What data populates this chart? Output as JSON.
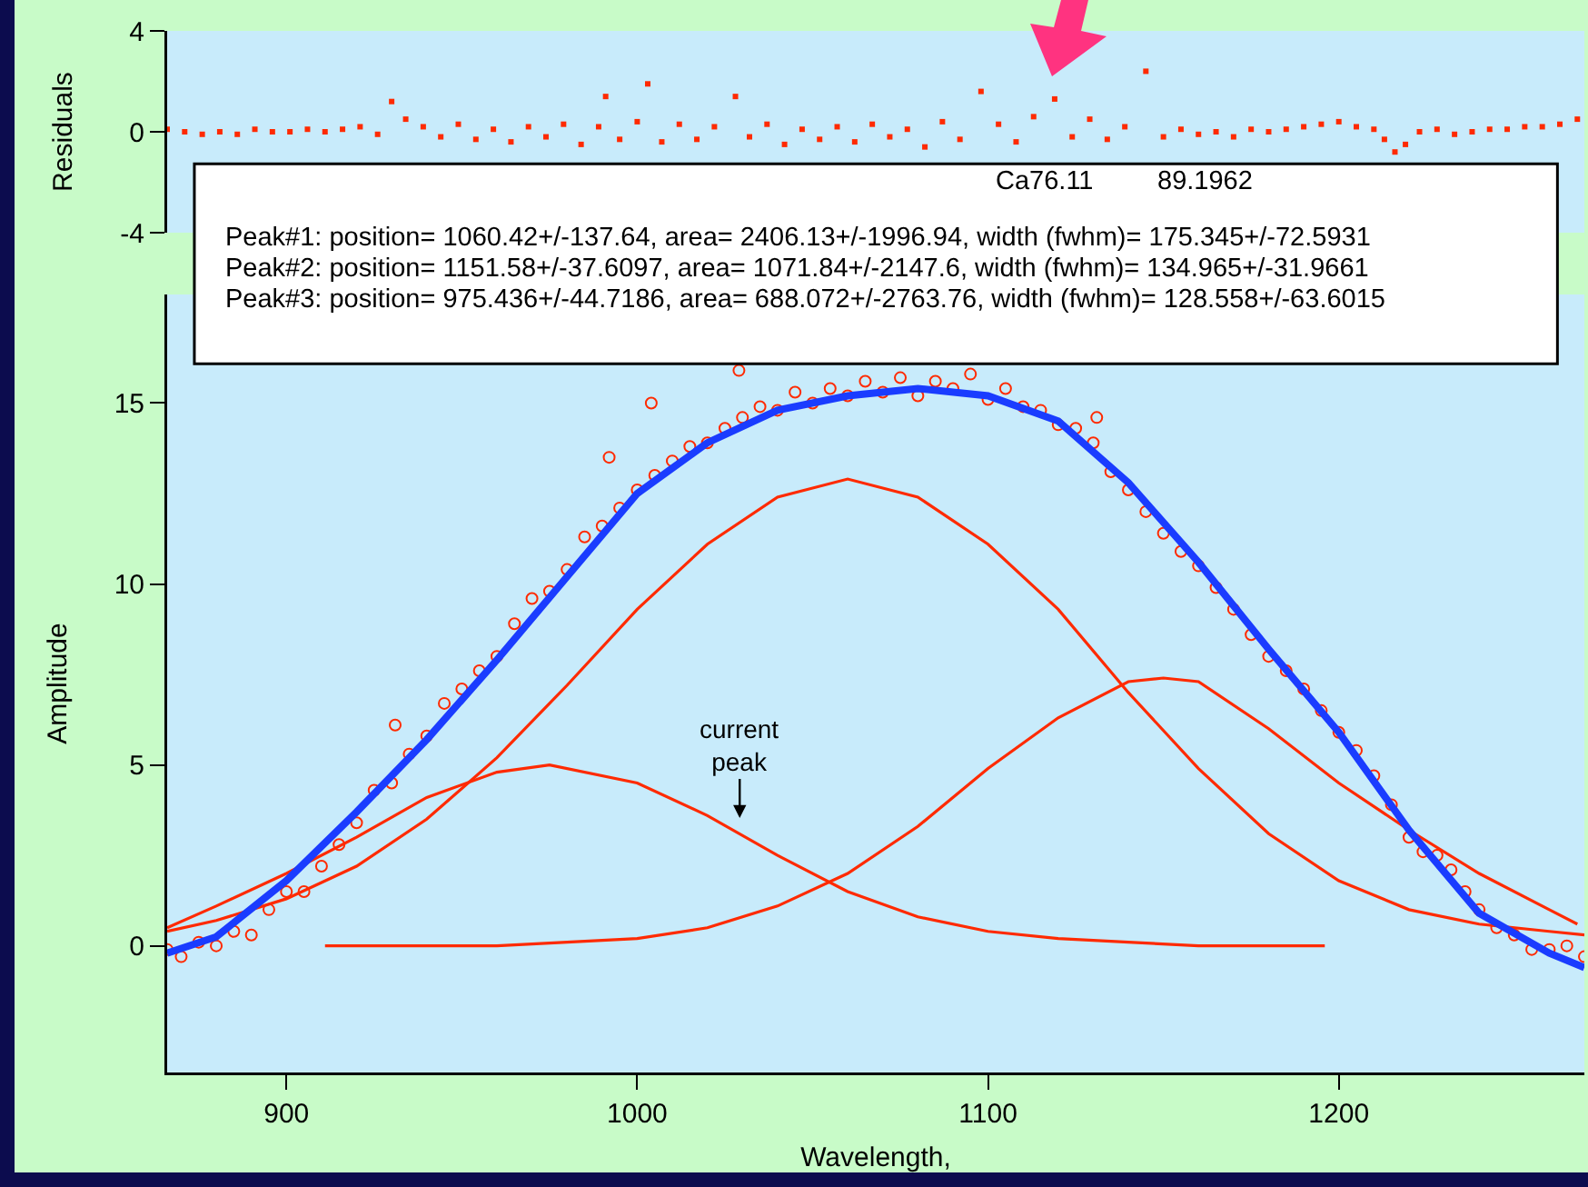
{
  "chart_data": [
    {
      "type": "scatter",
      "ylabel": "Residuals",
      "xlim": [
        866,
        1270
      ],
      "ylim": [
        -4,
        4
      ],
      "yticks": [
        -4,
        0,
        4
      ],
      "tick_labels": "y",
      "series": [
        {
          "color": "#ff2a00",
          "marker": "square",
          "x": [
            866,
            871,
            876,
            881,
            886,
            891,
            896,
            901,
            906,
            911,
            916,
            921,
            926,
            930,
            934,
            939,
            944,
            949,
            954,
            959,
            964,
            969,
            974,
            979,
            984,
            989,
            991,
            995,
            1000,
            1003,
            1007,
            1012,
            1017,
            1022,
            1028,
            1032,
            1037,
            1042,
            1047,
            1052,
            1057,
            1062,
            1067,
            1072,
            1077,
            1082,
            1087,
            1092,
            1098,
            1103,
            1108,
            1113,
            1119,
            1124,
            1129,
            1134,
            1139,
            1145,
            1150,
            1155,
            1160,
            1165,
            1170,
            1175,
            1180,
            1185,
            1190,
            1195,
            1200,
            1205,
            1210,
            1213,
            1216,
            1219,
            1223,
            1228,
            1233,
            1238,
            1243,
            1248,
            1253,
            1258,
            1263,
            1268
          ],
          "values": [
            0.1,
            0.0,
            -0.1,
            0.0,
            -0.1,
            0.1,
            0.0,
            0.0,
            0.1,
            0.0,
            0.1,
            0.2,
            -0.1,
            1.2,
            0.5,
            0.2,
            -0.2,
            0.3,
            -0.3,
            0.1,
            -0.4,
            0.2,
            -0.2,
            0.3,
            -0.5,
            0.2,
            1.4,
            -0.3,
            0.4,
            1.9,
            -0.4,
            0.3,
            -0.3,
            0.2,
            1.4,
            -0.2,
            0.3,
            -0.5,
            0.1,
            -0.3,
            0.2,
            -0.4,
            0.3,
            -0.2,
            0.1,
            -0.6,
            0.4,
            -0.3,
            1.6,
            0.3,
            -0.4,
            0.6,
            1.3,
            -0.2,
            0.5,
            -0.3,
            0.2,
            2.4,
            -0.2,
            0.1,
            -0.1,
            0.0,
            -0.2,
            0.1,
            0.0,
            0.1,
            0.2,
            0.3,
            0.4,
            0.2,
            0.1,
            -0.3,
            -0.8,
            -0.5,
            0.0,
            0.1,
            -0.1,
            0.0,
            0.1,
            0.1,
            0.2,
            0.2,
            0.3,
            0.5
          ]
        }
      ]
    },
    {
      "type": "line",
      "xlabel": "Wavelength,",
      "ylabel": "Amplitude",
      "xlim": [
        866,
        1270
      ],
      "ylim": [
        -3.5,
        18
      ],
      "xticks": [
        900,
        1000,
        1100,
        1200
      ],
      "yticks": [
        0,
        5,
        10,
        15
      ],
      "annotations": [
        "Ca76.11",
        "89.1962",
        "Peak#1: position= 1060.42+/-137.64, area= 2406.13+/-1996.94, width (fwhm)= 175.345+/-72.5931",
        "Peak#2: position= 1151.58+/-37.6097, area= 1071.84+/-2147.6, width (fwhm)= 134.965+/-31.9661",
        "Peak#3: position= 975.436+/-44.7186, area= 688.072+/-2763.76, width (fwhm)= 128.558+/-63.6015",
        "current\npeak"
      ],
      "series": [
        {
          "type": "scatter",
          "color": "#ff2a00",
          "marker": "circle",
          "x": [
            866,
            870,
            875,
            880,
            885,
            890,
            895,
            900,
            905,
            910,
            915,
            920,
            925,
            930,
            931,
            935,
            940,
            945,
            950,
            955,
            960,
            965,
            970,
            975,
            980,
            985,
            990,
            992,
            995,
            1000,
            1004,
            1005,
            1010,
            1015,
            1020,
            1025,
            1029,
            1030,
            1035,
            1040,
            1045,
            1050,
            1055,
            1060,
            1065,
            1070,
            1075,
            1080,
            1085,
            1090,
            1095,
            1100,
            1105,
            1110,
            1115,
            1120,
            1125,
            1130,
            1131,
            1135,
            1140,
            1145,
            1150,
            1155,
            1160,
            1165,
            1170,
            1175,
            1180,
            1185,
            1190,
            1195,
            1200,
            1205,
            1210,
            1215,
            1220,
            1224,
            1228,
            1232,
            1236,
            1240,
            1245,
            1250,
            1255,
            1260,
            1265,
            1270
          ],
          "values": [
            -0.1,
            -0.3,
            0.1,
            0.0,
            0.4,
            0.3,
            1.0,
            1.5,
            1.5,
            2.2,
            2.8,
            3.4,
            4.3,
            4.5,
            6.1,
            5.3,
            5.8,
            6.7,
            7.1,
            7.6,
            8.0,
            8.9,
            9.6,
            9.8,
            10.4,
            11.3,
            11.6,
            13.5,
            12.1,
            12.6,
            15.0,
            13.0,
            13.4,
            13.8,
            13.9,
            14.3,
            15.9,
            14.6,
            14.9,
            14.8,
            15.3,
            15.0,
            15.4,
            15.2,
            15.6,
            15.3,
            15.7,
            15.2,
            15.6,
            15.4,
            15.8,
            15.1,
            15.4,
            14.9,
            14.8,
            14.4,
            14.3,
            13.9,
            14.6,
            13.1,
            12.6,
            12.0,
            11.4,
            10.9,
            10.5,
            9.9,
            9.3,
            8.6,
            8.0,
            7.6,
            7.1,
            6.5,
            5.9,
            5.4,
            4.7,
            3.9,
            3.0,
            2.6,
            2.5,
            2.1,
            1.5,
            1.0,
            0.5,
            0.3,
            -0.1,
            -0.1,
            0.0,
            -0.3
          ]
        },
        {
          "color": "#ff2a00",
          "x": [
            866,
            880,
            900,
            920,
            940,
            960,
            980,
            1000,
            1020,
            1040,
            1060,
            1080,
            1100,
            1120,
            1140,
            1160,
            1180,
            1200,
            1220,
            1240,
            1260,
            1270
          ],
          "values": [
            0.4,
            0.7,
            1.3,
            2.2,
            3.5,
            5.2,
            7.2,
            9.3,
            11.1,
            12.4,
            12.9,
            12.4,
            11.1,
            9.3,
            7.0,
            4.9,
            3.1,
            1.8,
            1.0,
            0.6,
            0.4,
            0.3
          ]
        },
        {
          "color": "#ff2a00",
          "x": [
            911,
            940,
            960,
            980,
            1000,
            1020,
            1040,
            1060,
            1080,
            1100,
            1120,
            1140,
            1150,
            1160,
            1180,
            1200,
            1220,
            1240,
            1260,
            1268
          ],
          "values": [
            0.0,
            0.0,
            0.0,
            0.1,
            0.2,
            0.5,
            1.1,
            2.0,
            3.3,
            4.9,
            6.3,
            7.3,
            7.4,
            7.3,
            6.0,
            4.5,
            3.2,
            2.0,
            1.0,
            0.6
          ]
        },
        {
          "color": "#ff2a00",
          "x": [
            866,
            880,
            900,
            920,
            940,
            960,
            975,
            1000,
            1020,
            1040,
            1060,
            1080,
            1100,
            1120,
            1140,
            1160,
            1196
          ],
          "values": [
            0.5,
            1.1,
            2.0,
            3.0,
            4.1,
            4.8,
            5.0,
            4.5,
            3.6,
            2.5,
            1.5,
            0.8,
            0.4,
            0.2,
            0.1,
            0.0,
            0.0
          ]
        },
        {
          "color": "#1a3cff",
          "x": [
            866,
            880,
            900,
            920,
            940,
            960,
            980,
            1000,
            1020,
            1040,
            1060,
            1080,
            1100,
            1120,
            1140,
            1160,
            1180,
            1200,
            1220,
            1240,
            1260,
            1270
          ],
          "values": [
            -0.2,
            0.25,
            1.8,
            3.7,
            5.7,
            7.9,
            10.2,
            12.5,
            13.9,
            14.8,
            15.2,
            15.4,
            15.2,
            14.5,
            12.8,
            10.6,
            8.2,
            5.9,
            3.2,
            0.9,
            -0.2,
            -0.6
          ]
        }
      ]
    }
  ]
}
